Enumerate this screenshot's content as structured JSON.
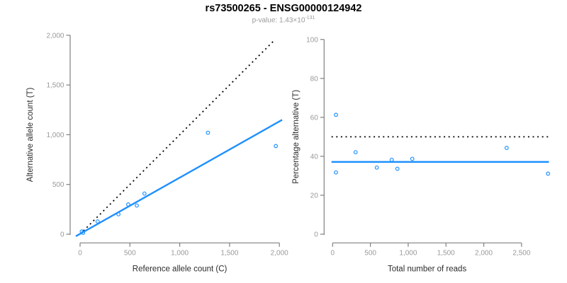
{
  "header": {
    "title": "rs73500265 - ENSG00000124942",
    "subtitle_prefix": "p-value: 1.43×10",
    "subtitle_exponent": "-131"
  },
  "colors": {
    "accent_blue": "#1E90FF",
    "dotted_line": "#000000",
    "axis_line": "#808080",
    "tick_label": "#999999",
    "axis_title": "#2b2b2b"
  },
  "chart_data": [
    {
      "type": "scatter",
      "name": "allele-counts-scatter",
      "xlabel": "Reference allele count (C)",
      "ylabel": "Alternative allele count (T)",
      "xlim": [
        0,
        2000
      ],
      "ylim": [
        0,
        2000
      ],
      "xticks": [
        0,
        500,
        1000,
        1500,
        2000
      ],
      "yticks": [
        0,
        500,
        1000,
        1500,
        2000
      ],
      "grid": false,
      "points": [
        [
          17,
          27
        ],
        [
          30,
          14
        ],
        [
          176,
          128
        ],
        [
          385,
          200
        ],
        [
          483,
          299
        ],
        [
          569,
          288
        ],
        [
          646,
          408
        ],
        [
          1283,
          1020
        ],
        [
          1964,
          886
        ]
      ],
      "identity_line": {
        "style": "dotted",
        "from": [
          0,
          0
        ],
        "to": [
          1950,
          1950
        ]
      },
      "fit_line": {
        "style": "solid",
        "from": [
          -43,
          -21
        ],
        "to": [
          2027,
          1149
        ]
      }
    },
    {
      "type": "scatter",
      "name": "percentage-alternative-scatter",
      "xlabel": "Total number of reads",
      "ylabel": "Percentage alternative (T)",
      "xlim": [
        0,
        2850
      ],
      "ylim": [
        0,
        100
      ],
      "xticks": [
        0,
        500,
        1000,
        1500,
        2000,
        2500
      ],
      "yticks": [
        0,
        20,
        40,
        60,
        80,
        100
      ],
      "grid": false,
      "points": [
        [
          44,
          61.3
        ],
        [
          44,
          31.7
        ],
        [
          304,
          42.1
        ],
        [
          585,
          34.2
        ],
        [
          782,
          38.2
        ],
        [
          857,
          33.6
        ],
        [
          1054,
          38.7
        ],
        [
          2303,
          44.3
        ],
        [
          2850,
          31.1
        ]
      ],
      "reference_line": {
        "style": "dotted",
        "y": 50,
        "x_from": -15,
        "x_to": 2862
      },
      "fit_line": {
        "style": "solid",
        "y": 37.1,
        "x_from": -15,
        "x_to": 2862
      }
    }
  ]
}
